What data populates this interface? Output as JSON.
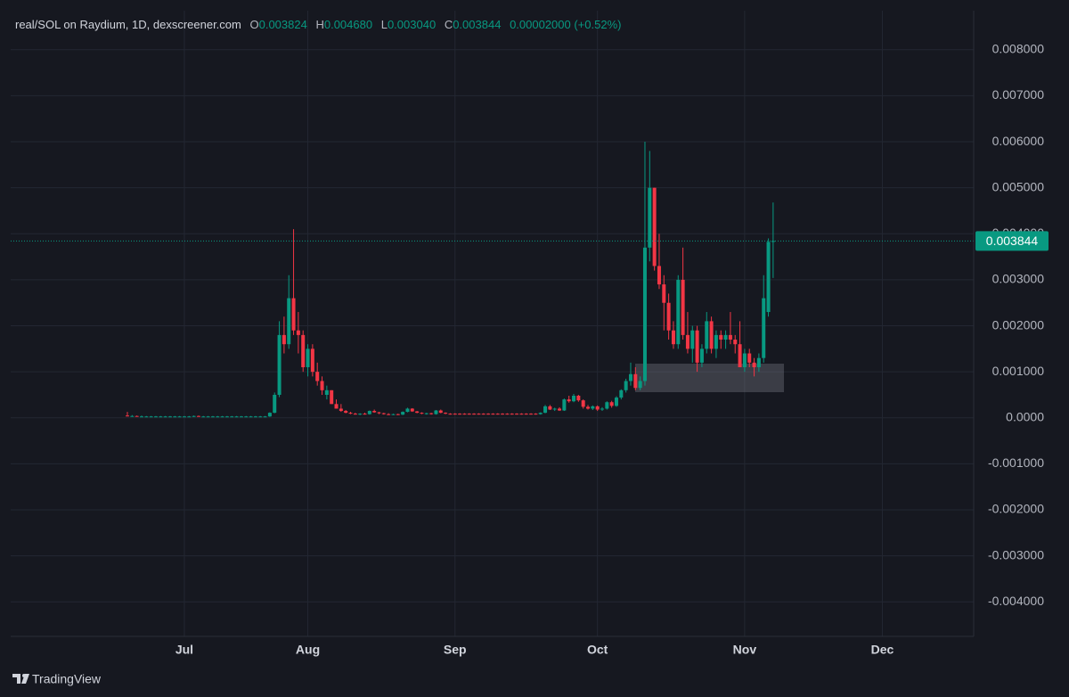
{
  "header": {
    "title": "real/SOL on Raydium, 1D, dexscreener.com",
    "o": "O",
    "open": "0.003824",
    "h": "H",
    "high": "0.004680",
    "l": "L",
    "low": "0.003040",
    "c": "C",
    "close": "0.003844",
    "change": "0.00002000 (+0.52%)"
  },
  "branding": "TradingView",
  "chart_data": {
    "type": "candlestick",
    "categories": [
      null,
      null,
      null,
      null,
      null,
      null,
      null,
      null,
      null,
      null,
      null,
      null,
      "Jul",
      null,
      null,
      null,
      null,
      null,
      null,
      null,
      null,
      null,
      null,
      null,
      null,
      null,
      null,
      null,
      null,
      null,
      null,
      null,
      null,
      null,
      null,
      null,
      null,
      null,
      "Aug",
      null,
      null,
      null,
      null,
      null,
      null,
      null,
      null,
      null,
      null,
      null,
      null,
      null,
      null,
      null,
      null,
      null,
      null,
      null,
      null,
      null,
      null,
      null,
      null,
      null,
      null,
      null,
      null,
      null,
      null,
      "Sep",
      null,
      null,
      null,
      null,
      null,
      null,
      null,
      null,
      null,
      null,
      null,
      null,
      null,
      null,
      null,
      null,
      null,
      null,
      null,
      null,
      null,
      null,
      null,
      null,
      null,
      null,
      null,
      null,
      null,
      "Oct",
      null,
      null,
      null,
      null,
      null,
      null,
      null,
      null,
      null,
      null,
      null,
      null,
      null,
      null,
      null,
      null,
      null,
      null,
      null,
      null,
      null,
      null,
      null,
      null,
      null,
      null,
      null,
      null,
      null,
      null,
      "Nov",
      null,
      null,
      null,
      null,
      null,
      null,
      null,
      null,
      null,
      null,
      null,
      null,
      null,
      null,
      null,
      null,
      null,
      null,
      null,
      null,
      null,
      null,
      null,
      null,
      null,
      null,
      null,
      null,
      "Dec"
    ],
    "open": [
      5e-05,
      4e-05,
      4e-05,
      3e-05,
      3e-05,
      3e-05,
      3e-05,
      3e-05,
      3e-05,
      3e-05,
      3e-05,
      3e-05,
      3e-05,
      3e-05,
      3e-05,
      4e-05,
      3e-05,
      3e-05,
      3e-05,
      3e-05,
      3e-05,
      3e-05,
      3e-05,
      3e-05,
      3e-05,
      3e-05,
      3e-05,
      3e-05,
      3e-05,
      3e-05,
      3e-05,
      0.00011,
      0.0005,
      0.0018,
      0.0016,
      0.0026,
      0.0019,
      0.0018,
      0.0011,
      0.0015,
      0.001,
      0.0008,
      0.0005,
      0.0006,
      0.0003,
      0.0002,
      0.00015,
      0.00011,
      9e-05,
      8e-05,
      9e-05,
      8e-05,
      0.00015,
      0.00012,
      0.0001,
      8e-05,
      7e-05,
      8e-05,
      7e-05,
      0.00013,
      0.0002,
      0.00014,
      0.00011,
      9e-05,
      0.0001,
      8e-05,
      0.00016,
      0.00011,
      9e-05,
      9e-05,
      9e-05,
      9e-05,
      9e-05,
      9e-05,
      9e-05,
      9e-05,
      9e-05,
      9e-05,
      9e-05,
      9e-05,
      9e-05,
      9e-05,
      9e-05,
      9e-05,
      9e-05,
      9e-05,
      9e-05,
      8e-05,
      0.00011,
      0.00025,
      0.00018,
      0.0002,
      0.00016,
      0.0004,
      0.00036,
      0.00048,
      0.00038,
      0.00024,
      0.0002,
      0.00025,
      0.00018,
      0.0002,
      0.00034,
      0.00026,
      0.00044,
      0.0006,
      0.0008,
      0.00095,
      0.00065,
      0.0008,
      0.0037,
      0.005,
      0.0033,
      0.0029,
      0.0025,
      0.0019,
      0.0016,
      0.003,
      0.0018,
      0.0015,
      0.0019,
      0.0012,
      0.0015,
      0.0021,
      0.0015,
      0.0018,
      0.0017,
      0.0018,
      0.0017,
      0.0016,
      0.0011,
      0.0014,
      0.0012,
      0.0011,
      0.0013,
      0.0023,
      0.003824,
      null,
      null,
      null,
      null,
      null,
      null,
      null,
      null,
      null,
      null,
      null,
      null,
      null,
      null,
      null,
      null,
      null,
      null,
      null,
      null,
      null,
      null,
      null
    ],
    "high": [
      0.00013,
      6e-05,
      5e-05,
      5e-05,
      4e-05,
      4e-05,
      4e-05,
      4e-05,
      4e-05,
      4e-05,
      4e-05,
      4e-05,
      4e-05,
      4e-05,
      5e-05,
      5e-05,
      4e-05,
      4e-05,
      4e-05,
      4e-05,
      4e-05,
      4e-05,
      4e-05,
      4e-05,
      4e-05,
      4e-05,
      4e-05,
      4e-05,
      4e-05,
      4e-05,
      0.00012,
      0.00055,
      0.0021,
      0.0022,
      0.0031,
      0.0041,
      0.0023,
      0.0019,
      0.0016,
      0.0016,
      0.0012,
      0.0009,
      0.0007,
      0.0006,
      0.0004,
      0.0003,
      0.00017,
      0.00013,
      0.00011,
      0.0001,
      0.00011,
      0.00016,
      0.00018,
      0.00013,
      0.00011,
      0.0001,
      9e-05,
      9e-05,
      0.00014,
      0.00022,
      0.00021,
      0.00015,
      0.00012,
      0.00011,
      0.00011,
      0.00017,
      0.00018,
      0.00012,
      0.0001,
      0.0001,
      0.0001,
      0.0001,
      0.0001,
      0.0001,
      0.0001,
      0.0001,
      0.0001,
      0.0001,
      0.0001,
      0.0001,
      0.0001,
      0.0001,
      0.0001,
      0.0001,
      0.0001,
      0.0001,
      0.0001,
      0.00012,
      0.00028,
      0.00028,
      0.00022,
      0.00023,
      0.00042,
      0.00048,
      0.00052,
      0.0005,
      0.0004,
      0.00028,
      0.00027,
      0.00027,
      0.00023,
      0.00036,
      0.00037,
      0.00047,
      0.00062,
      0.00085,
      0.0012,
      0.0011,
      0.0009,
      0.006,
      0.0058,
      0.005,
      0.004,
      0.0031,
      0.0027,
      0.0021,
      0.0031,
      0.0037,
      0.0023,
      0.002,
      0.002,
      0.0016,
      0.0023,
      0.0022,
      0.0019,
      0.0019,
      0.0019,
      0.0023,
      0.0018,
      0.0021,
      0.0015,
      0.0015,
      0.0013,
      0.0014,
      0.0031,
      0.0039,
      0.00468,
      null,
      null,
      null,
      null,
      null,
      null,
      null,
      null,
      null,
      null,
      null,
      null,
      null,
      null,
      null,
      null,
      null,
      null,
      null,
      null,
      null,
      null,
      null
    ],
    "low": [
      3e-05,
      3e-05,
      3e-05,
      2e-05,
      2e-05,
      2e-05,
      2e-05,
      2e-05,
      2e-05,
      2e-05,
      2e-05,
      2e-05,
      2e-05,
      2e-05,
      2e-05,
      3e-05,
      2e-05,
      2e-05,
      2e-05,
      2e-05,
      2e-05,
      2e-05,
      2e-05,
      2e-05,
      2e-05,
      2e-05,
      2e-05,
      2e-05,
      2e-05,
      2e-05,
      2e-05,
      0.0001,
      0.00045,
      0.0014,
      0.0015,
      0.0018,
      0.0014,
      0.001,
      0.0009,
      0.0009,
      0.0007,
      0.0005,
      0.0004,
      0.0003,
      0.0002,
      0.00013,
      0.0001,
      8e-05,
      7e-05,
      6e-05,
      7e-05,
      7e-05,
      0.00011,
      8e-05,
      7e-05,
      6e-05,
      6e-05,
      6e-05,
      6e-05,
      0.00012,
      0.00013,
      0.0001,
      8e-05,
      7e-05,
      7e-05,
      7e-05,
      0.0001,
      8e-05,
      7e-05,
      7e-05,
      7e-05,
      7e-05,
      7e-05,
      7e-05,
      7e-05,
      7e-05,
      7e-05,
      7e-05,
      7e-05,
      7e-05,
      7e-05,
      7e-05,
      7e-05,
      7e-05,
      7e-05,
      7e-05,
      7e-05,
      7e-05,
      0.0001,
      0.00017,
      0.00015,
      0.00015,
      0.00015,
      0.00033,
      0.00034,
      0.00035,
      0.0002,
      0.00018,
      0.00017,
      0.00015,
      0.00015,
      0.00018,
      0.00022,
      0.00024,
      0.0004,
      0.00055,
      0.0007,
      0.0006,
      0.0006,
      0.0007,
      0.0034,
      0.0032,
      0.0028,
      0.0019,
      0.0017,
      0.0015,
      0.0015,
      0.0017,
      0.0014,
      0.0012,
      0.001,
      0.0011,
      0.0014,
      0.0014,
      0.0013,
      0.0015,
      0.0015,
      0.0016,
      0.0014,
      0.0011,
      0.001,
      0.0011,
      0.0009,
      0.001,
      0.0012,
      0.0022,
      0.00304,
      null,
      null,
      null,
      null,
      null,
      null,
      null,
      null,
      null,
      null,
      null,
      null,
      null,
      null,
      null,
      null,
      null,
      null,
      null,
      null,
      null,
      null,
      null
    ],
    "close": [
      4e-05,
      4e-05,
      3e-05,
      3e-05,
      3e-05,
      3e-05,
      3e-05,
      3e-05,
      3e-05,
      3e-05,
      3e-05,
      3e-05,
      3e-05,
      3e-05,
      4e-05,
      3e-05,
      3e-05,
      3e-05,
      3e-05,
      3e-05,
      3e-05,
      3e-05,
      3e-05,
      3e-05,
      3e-05,
      3e-05,
      3e-05,
      3e-05,
      3e-05,
      3e-05,
      0.00011,
      0.0005,
      0.0018,
      0.0016,
      0.0026,
      0.0019,
      0.0018,
      0.0011,
      0.0015,
      0.001,
      0.0008,
      0.0006,
      0.0006,
      0.0003,
      0.0002,
      0.00015,
      0.00011,
      9e-05,
      8e-05,
      9e-05,
      8e-05,
      0.00015,
      0.00012,
      0.0001,
      8e-05,
      7e-05,
      8e-05,
      7e-05,
      0.00013,
      0.0002,
      0.00014,
      0.00011,
      9e-05,
      0.0001,
      8e-05,
      0.00016,
      0.00011,
      9e-05,
      8e-05,
      8e-05,
      8e-05,
      8e-05,
      8e-05,
      8e-05,
      8e-05,
      8e-05,
      8e-05,
      8e-05,
      8e-05,
      8e-05,
      8e-05,
      8e-05,
      8e-05,
      8e-05,
      8e-05,
      8e-05,
      8e-05,
      0.00011,
      0.00025,
      0.00018,
      0.0002,
      0.00016,
      0.0004,
      0.00036,
      0.00048,
      0.00038,
      0.00024,
      0.0002,
      0.00025,
      0.00018,
      0.0002,
      0.00034,
      0.00026,
      0.00044,
      0.0006,
      0.0008,
      0.00095,
      0.00065,
      0.0008,
      0.0037,
      0.005,
      0.0033,
      0.0029,
      0.0025,
      0.0019,
      0.0016,
      0.003,
      0.0018,
      0.0015,
      0.0019,
      0.0012,
      0.0015,
      0.0021,
      0.0015,
      0.0018,
      0.0017,
      0.0018,
      0.0017,
      0.0016,
      0.0011,
      0.0014,
      0.0012,
      0.0011,
      0.0013,
      0.0026,
      0.003824,
      0.003844,
      null,
      null,
      null,
      null,
      null,
      null,
      null,
      null,
      null,
      null,
      null,
      null,
      null,
      null,
      null,
      null,
      null,
      null,
      null,
      null,
      null,
      null,
      null
    ],
    "up_color": "#089981",
    "down_color": "#f23645",
    "ylim": [
      -0.00475,
      0.0085
    ],
    "yticks": [
      {
        "value": 0.008,
        "label": "0.008000"
      },
      {
        "value": 0.007,
        "label": "0.007000"
      },
      {
        "value": 0.006,
        "label": "0.006000"
      },
      {
        "value": 0.005,
        "label": "0.005000"
      },
      {
        "value": 0.004,
        "label": "0.004000"
      },
      {
        "value": 0.003,
        "label": "0.003000"
      },
      {
        "value": 0.002,
        "label": "0.002000"
      },
      {
        "value": 0.001,
        "label": "0.001000"
      },
      {
        "value": 0,
        "label": "0.0000"
      },
      {
        "value": -0.001,
        "label": "-0.001000"
      },
      {
        "value": -0.002,
        "label": "-0.002000"
      },
      {
        "value": -0.003,
        "label": "-0.003000"
      },
      {
        "value": -0.004,
        "label": "-0.004000"
      }
    ],
    "grid": true,
    "last_price": {
      "value": 0.003844,
      "label": "0.003844"
    }
  }
}
